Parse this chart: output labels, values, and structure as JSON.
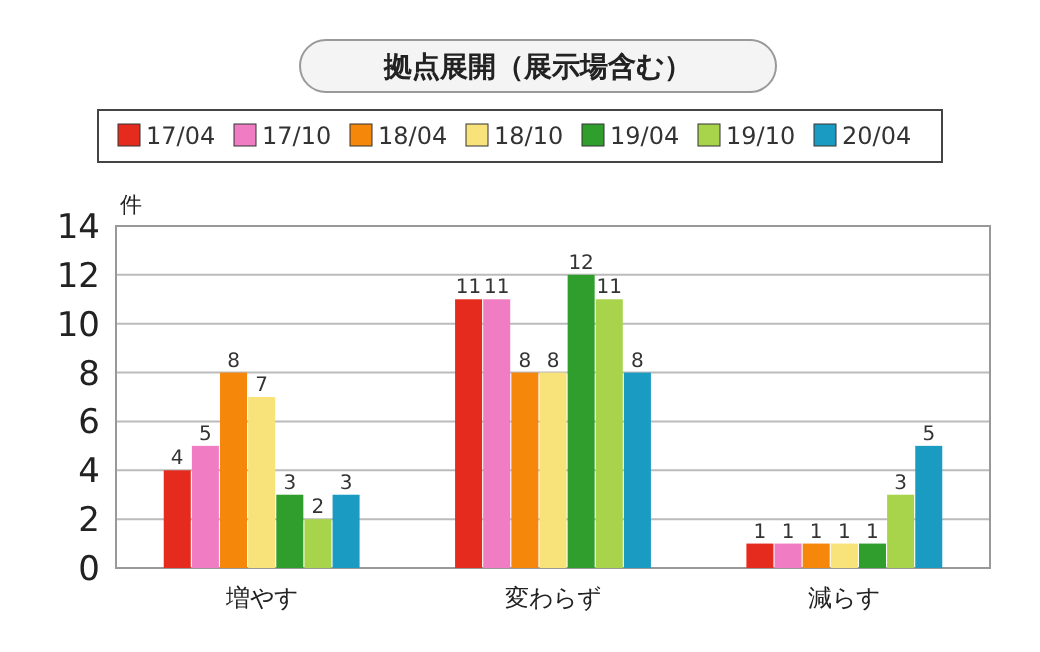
{
  "chart_data": {
    "type": "bar",
    "title": "拠点展開（展示場含む）",
    "ylabel": "件",
    "categories": [
      "増やす",
      "変わらず",
      "減らす"
    ],
    "series": [
      {
        "name": "17/04",
        "color": "#e52a1e",
        "values": [
          4,
          11,
          1
        ]
      },
      {
        "name": "17/10",
        "color": "#f07cc4",
        "values": [
          5,
          11,
          1
        ]
      },
      {
        "name": "18/04",
        "color": "#f5870a",
        "values": [
          8,
          8,
          1
        ]
      },
      {
        "name": "18/10",
        "color": "#f8e27a",
        "values": [
          7,
          8,
          1
        ]
      },
      {
        "name": "19/04",
        "color": "#2f9e2c",
        "values": [
          3,
          12,
          1
        ]
      },
      {
        "name": "19/10",
        "color": "#a8d44c",
        "values": [
          2,
          11,
          3
        ]
      },
      {
        "name": "20/04",
        "color": "#1a9cc2",
        "values": [
          3,
          8,
          5
        ]
      }
    ],
    "ylim": [
      0,
      14
    ],
    "yticks": [
      0,
      2,
      4,
      6,
      8,
      10,
      12,
      14
    ],
    "grid": "y",
    "legend": "top",
    "data_labels": true
  }
}
